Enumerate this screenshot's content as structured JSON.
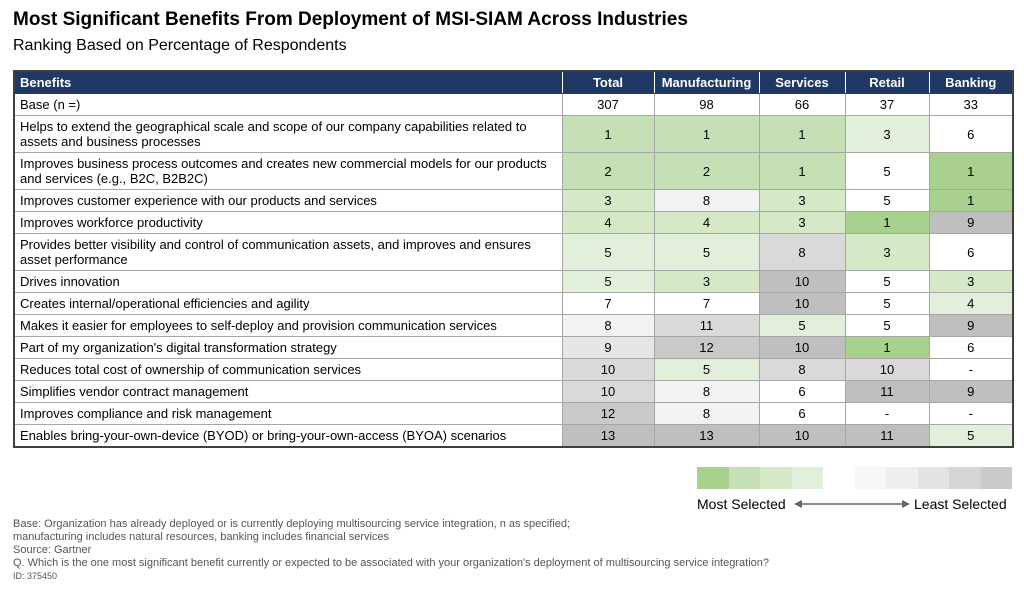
{
  "header": {
    "title": "Most Significant Benefits From Deployment of MSI-SIAM Across Industries",
    "subtitle": "Ranking Based on Percentage of Respondents"
  },
  "table": {
    "columns": [
      "Benefits",
      "Total",
      "Manufacturing",
      "Services",
      "Retail",
      "Banking"
    ],
    "base": {
      "label": "Base (n =)",
      "values": [
        307,
        98,
        66,
        37,
        33
      ]
    },
    "rows": [
      {
        "label": "Helps to extend the geographical scale and scope of our company capabilities related to assets and business processes",
        "values": [
          1,
          1,
          1,
          3,
          6
        ],
        "colors": [
          "#c5e0b4",
          "#c5e0b4",
          "#c5e0b4",
          "#e2efda",
          "#ffffff"
        ]
      },
      {
        "label": "Improves business process outcomes and creates new commercial models for our products and services (e.g., B2C, B2B2C)",
        "values": [
          2,
          2,
          1,
          5,
          1
        ],
        "colors": [
          "#c5e0b4",
          "#c5e0b4",
          "#c5e0b4",
          "#ffffff",
          "#a9d18e"
        ]
      },
      {
        "label": "Improves customer experience with our products and services",
        "values": [
          3,
          8,
          3,
          5,
          1
        ],
        "colors": [
          "#d5e9c7",
          "#f2f2f2",
          "#d5e9c7",
          "#ffffff",
          "#a9d18e"
        ]
      },
      {
        "label": "Improves workforce productivity",
        "values": [
          4,
          4,
          3,
          1,
          9
        ],
        "colors": [
          "#d5e9c7",
          "#d5e9c7",
          "#d5e9c7",
          "#a9d18e",
          "#bfbfbf"
        ]
      },
      {
        "label": "Provides better visibility and control of communication assets, and improves and ensures asset performance",
        "values": [
          5,
          5,
          8,
          3,
          6
        ],
        "colors": [
          "#e2efda",
          "#e2efda",
          "#d9d9d9",
          "#d5e9c7",
          "#ffffff"
        ]
      },
      {
        "label": "Drives innovation",
        "values": [
          5,
          3,
          10,
          5,
          3
        ],
        "colors": [
          "#e2efda",
          "#d5e9c7",
          "#bfbfbf",
          "#ffffff",
          "#d5e9c7"
        ]
      },
      {
        "label": "Creates internal/operational efficiencies and agility",
        "values": [
          7,
          7,
          10,
          5,
          4
        ],
        "colors": [
          "#ffffff",
          "#ffffff",
          "#bfbfbf",
          "#ffffff",
          "#e2efda"
        ]
      },
      {
        "label": "Makes it easier for employees to self-deploy and provision communication services",
        "values": [
          8,
          11,
          5,
          5,
          9
        ],
        "colors": [
          "#f2f2f2",
          "#d9d9d9",
          "#e2efda",
          "#ffffff",
          "#bfbfbf"
        ]
      },
      {
        "label": "Part of my organization's digital transformation strategy",
        "values": [
          9,
          12,
          10,
          1,
          6
        ],
        "colors": [
          "#e6e6e6",
          "#c9c9c9",
          "#bfbfbf",
          "#a9d18e",
          "#ffffff"
        ]
      },
      {
        "label": "Reduces total cost of ownership of communication services",
        "values": [
          10,
          5,
          8,
          10,
          "-"
        ],
        "colors": [
          "#d9d9d9",
          "#e2efda",
          "#d9d9d9",
          "#d9d9d9",
          "#ffffff"
        ]
      },
      {
        "label": "Simplifies vendor contract management",
        "values": [
          10,
          8,
          6,
          11,
          9
        ],
        "colors": [
          "#d9d9d9",
          "#f2f2f2",
          "#ffffff",
          "#bfbfbf",
          "#bfbfbf"
        ]
      },
      {
        "label": "Improves compliance and risk management",
        "values": [
          12,
          8,
          6,
          "-",
          "-"
        ],
        "colors": [
          "#c9c9c9",
          "#f2f2f2",
          "#ffffff",
          "#ffffff",
          "#ffffff"
        ]
      },
      {
        "label": "Enables bring-your-own-device (BYOD) or bring-your-own-access (BYOA) scenarios",
        "values": [
          13,
          13,
          10,
          11,
          5
        ],
        "colors": [
          "#bfbfbf",
          "#bfbfbf",
          "#bfbfbf",
          "#bfbfbf",
          "#e2efda"
        ]
      }
    ]
  },
  "legend": {
    "colors": [
      "#a9d18e",
      "#c5e0b4",
      "#d5e9c7",
      "#e2efda",
      "#ffffff",
      "#f7f7f7",
      "#eeeeee",
      "#e3e3e3",
      "#d5d5d5",
      "#c9c9c9"
    ],
    "left_label": "Most Selected",
    "right_label": "Least Selected"
  },
  "footnotes": [
    "Base: Organization has already deployed or is currently deploying multisourcing service integration, n as specified;",
    "manufacturing includes natural resources, banking includes financial services",
    "Source: Gartner",
    "Q. Which is the one most significant benefit currently or expected to be associated with your organization's deployment of multisourcing service integration?"
  ],
  "id": "ID: 375450"
}
